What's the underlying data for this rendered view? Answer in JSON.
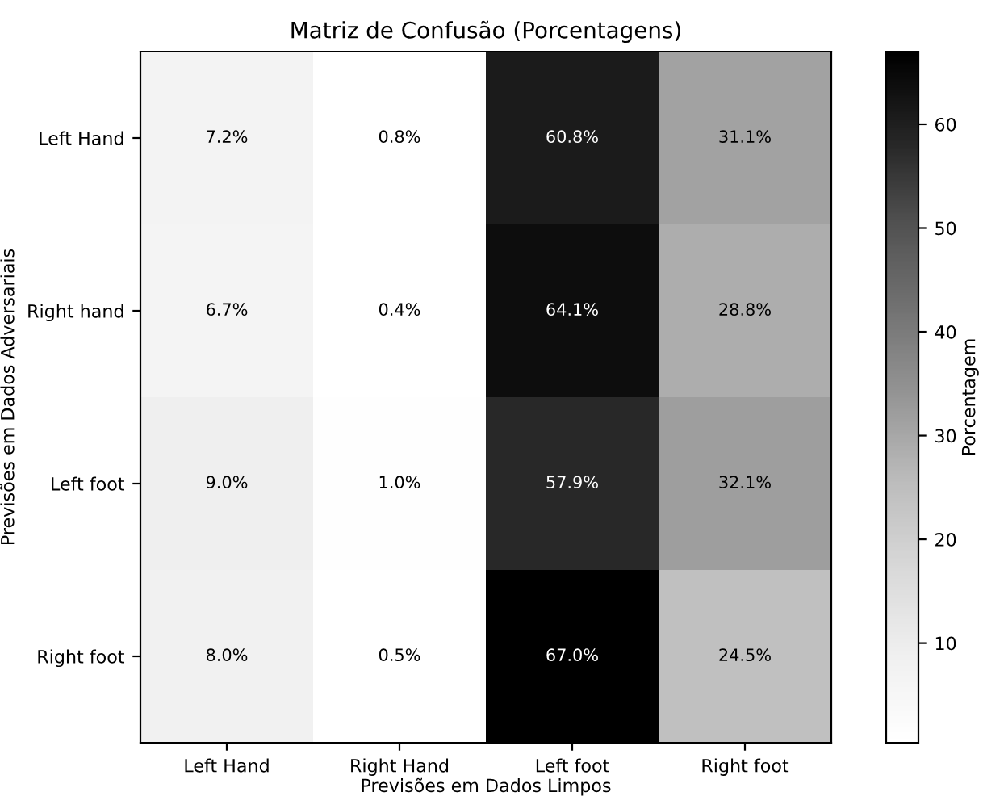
{
  "chart_data": {
    "type": "heatmap",
    "title": "Matriz de Confusão (Porcentagens)",
    "xlabel": "Previsões em Dados Limpos",
    "ylabel": "Previsões em Dados Adversariais",
    "clabel": "Porcentagem",
    "categories": [
      "Left Hand",
      "Right Hand",
      "Left foot",
      "Right foot"
    ],
    "y_categories": [
      "Left Hand",
      "Right hand",
      "Left foot",
      "Right foot"
    ],
    "cells": [
      [
        7.2,
        0.8,
        60.8,
        31.1
      ],
      [
        6.7,
        0.4,
        64.1,
        28.8
      ],
      [
        9.0,
        1.0,
        57.9,
        32.1
      ],
      [
        8.0,
        0.5,
        67.0,
        24.5
      ]
    ],
    "cell_labels": [
      [
        "7.2%",
        "0.8%",
        "60.8%",
        "31.1%"
      ],
      [
        "6.7%",
        "0.4%",
        "64.1%",
        "28.8%"
      ],
      [
        "9.0%",
        "1.0%",
        "57.9%",
        "32.1%"
      ],
      [
        "8.0%",
        "0.5%",
        "67.0%",
        "24.5%"
      ]
    ],
    "clim": [
      0.4,
      67.0
    ],
    "cticks": [
      10,
      20,
      30,
      40,
      50,
      60
    ]
  }
}
